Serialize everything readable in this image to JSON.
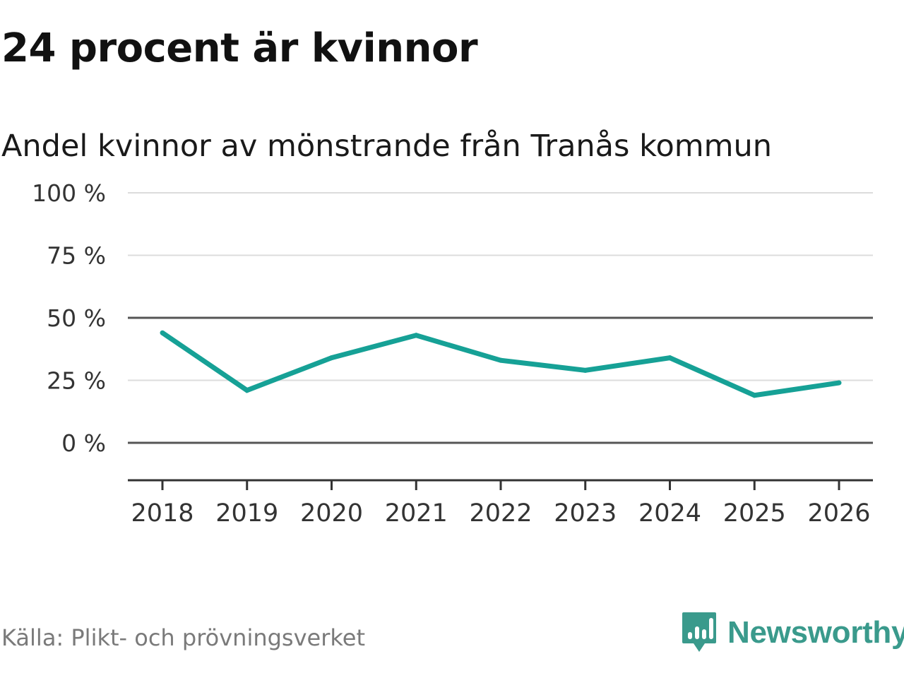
{
  "header": {
    "title": "24 procent är kvinnor"
  },
  "chart_data": {
    "type": "line",
    "title": "24 procent är kvinnor",
    "subtitle": "Andel kvinnor av mönstrande från Tranås kommun",
    "xlabel": "",
    "ylabel": "",
    "categories": [
      "2018",
      "2019",
      "2020",
      "2021",
      "2022",
      "2023",
      "2024",
      "2025",
      "2026"
    ],
    "series": [
      {
        "name": "Andel kvinnor",
        "values": [
          44,
          21,
          34,
          43,
          33,
          29,
          34,
          19,
          24
        ]
      }
    ],
    "ylim": [
      -15,
      100
    ],
    "yticks": [
      0,
      25,
      50,
      75,
      100
    ],
    "ytick_labels": [
      "0 %",
      "25 %",
      "50 %",
      "75 %",
      "100 %"
    ],
    "reference_lines": [
      0,
      50
    ],
    "grid": true,
    "legend": "none",
    "colors": {
      "line": "#16a196",
      "grid": "#dcdcdc",
      "reference": "#555555",
      "axis": "#333333"
    }
  },
  "footer": {
    "source": "Källa: Plikt- och prövningsverket",
    "brand_name": "Newsworthy",
    "brand_icon": "newsworthy-logo-icon",
    "brand_color": "#3a9a8c"
  }
}
